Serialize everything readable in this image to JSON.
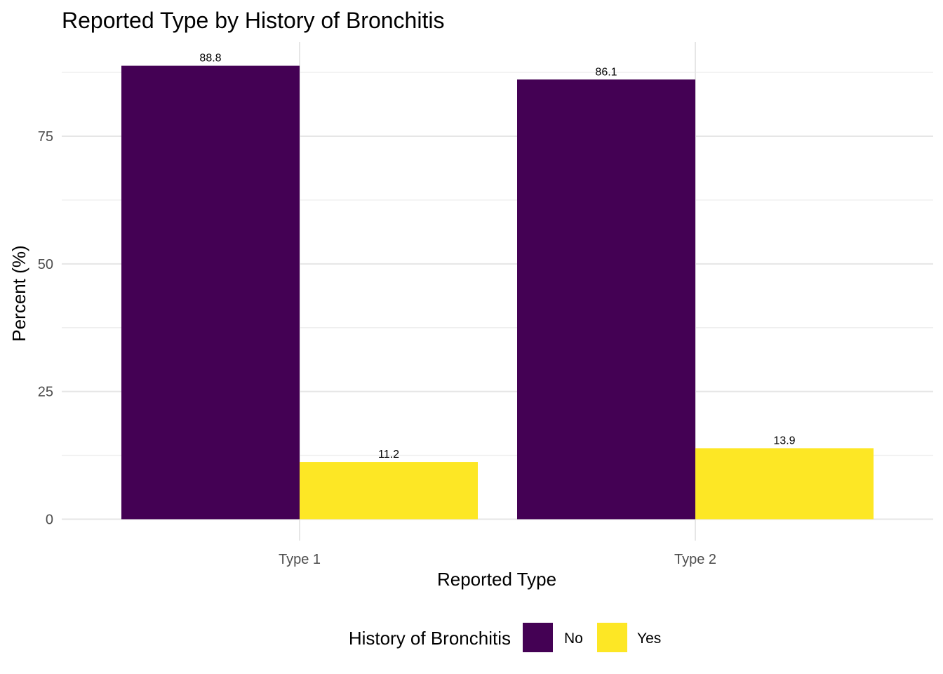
{
  "chart_data": {
    "type": "bar",
    "title": "Reported Type by History of Bronchitis",
    "xlabel": "Reported Type",
    "ylabel": "Percent (%)",
    "categories": [
      "Type 1",
      "Type 2"
    ],
    "series": [
      {
        "name": "No",
        "color": "#440154",
        "values": [
          88.8,
          86.1
        ],
        "labels": [
          "88.8",
          "86.1"
        ]
      },
      {
        "name": "Yes",
        "color": "#FDE725",
        "values": [
          11.2,
          13.9
        ],
        "labels": [
          "11.2",
          "13.9"
        ]
      }
    ],
    "ylim": [
      0,
      90
    ],
    "yticks": [
      0,
      25,
      50,
      75
    ],
    "ytick_labels": [
      "0",
      "25",
      "50",
      "75"
    ],
    "grid": true,
    "legend": {
      "title": "History of Bronchitis",
      "position": "bottom"
    }
  }
}
